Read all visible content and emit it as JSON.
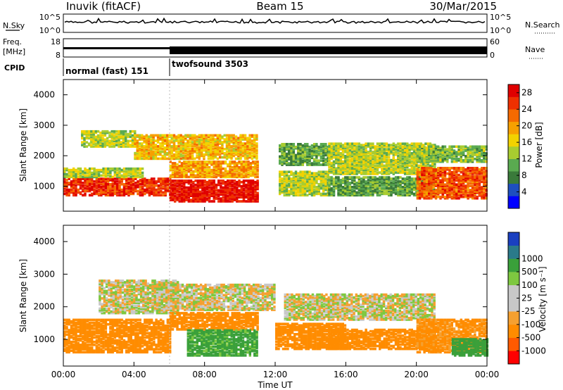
{
  "header": {
    "station": "Inuvik (fitACF)",
    "beam": "Beam 15",
    "date": "30/Mar/2015"
  },
  "panels": {
    "nsky": {
      "left_label": "N.Sky",
      "right_label": "N.Search",
      "left_ticks": [
        "10^5",
        "10^0"
      ],
      "right_ticks": [
        "10^5",
        "10^0"
      ]
    },
    "freq": {
      "left_label_1": "Freq.",
      "left_label_2": "[MHz]",
      "right_label": "Nave",
      "left_ticks": [
        "18",
        "8"
      ],
      "right_ticks": [
        "60",
        "0"
      ]
    },
    "cpid": {
      "label": "CPID",
      "segments": [
        {
          "text": "normal (fast) 151",
          "start_hour": 0,
          "end_hour": 6
        },
        {
          "text": "twofsound 3503",
          "start_hour": 6,
          "end_hour": 24
        }
      ]
    }
  },
  "colors": {
    "power_scale": [
      "#0000ff",
      "#1e4fbf",
      "#3a7a3a",
      "#5aaa50",
      "#a8cc30",
      "#f2d200",
      "#f7a000",
      "#f56a00",
      "#ee3000",
      "#e00000"
    ],
    "velocity_scale": [
      "#ff0000",
      "#ff5a00",
      "#ff8c00",
      "#f5a030",
      "#c8c8c8",
      "#c8c8c8",
      "#7ec840",
      "#3aa03a",
      "#2a7a8a",
      "#1a40c0"
    ]
  },
  "chart_data": [
    {
      "type": "heatmap",
      "title": "",
      "xlabel": "",
      "ylabel": "Slant Range [km]",
      "xlim_hours": [
        0,
        24
      ],
      "ylim": [
        180,
        4500
      ],
      "x_ticks": [
        "00:00",
        "04:00",
        "08:00",
        "12:00",
        "16:00",
        "20:00",
        "00:00"
      ],
      "y_ticks": [
        1000,
        2000,
        3000,
        4000
      ],
      "colorbar": {
        "label": "Power [dB]",
        "ticks": [
          4,
          8,
          12,
          16,
          20,
          24,
          28
        ],
        "range": [
          0,
          30
        ]
      },
      "bands": [
        {
          "hour_start": 0.0,
          "hour_end": 6.0,
          "range_start": 700,
          "range_end": 1250,
          "power": 26
        },
        {
          "hour_start": 0.0,
          "hour_end": 4.5,
          "range_start": 1300,
          "range_end": 1600,
          "power": 14
        },
        {
          "hour_start": 1.0,
          "hour_end": 4.0,
          "range_start": 2300,
          "range_end": 2800,
          "power": 14
        },
        {
          "hour_start": 4.0,
          "hour_end": 11.0,
          "range_start": 1900,
          "range_end": 2700,
          "power": 18
        },
        {
          "hour_start": 6.0,
          "hour_end": 11.0,
          "range_start": 500,
          "range_end": 1200,
          "power": 28
        },
        {
          "hour_start": 6.0,
          "hour_end": 11.0,
          "range_start": 1300,
          "range_end": 1800,
          "power": 20
        },
        {
          "hour_start": 12.2,
          "hour_end": 15.0,
          "range_start": 700,
          "range_end": 1500,
          "power": 14
        },
        {
          "hour_start": 12.2,
          "hour_end": 15.0,
          "range_start": 1700,
          "range_end": 2400,
          "power": 10
        },
        {
          "hour_start": 15.0,
          "hour_end": 21.0,
          "range_start": 1400,
          "range_end": 2400,
          "power": 14
        },
        {
          "hour_start": 15.0,
          "hour_end": 21.0,
          "range_start": 700,
          "range_end": 1300,
          "power": 10
        },
        {
          "hour_start": 20.0,
          "hour_end": 24.0,
          "range_start": 600,
          "range_end": 1600,
          "power": 24
        },
        {
          "hour_start": 20.0,
          "hour_end": 24.0,
          "range_start": 1800,
          "range_end": 2300,
          "power": 12
        }
      ]
    },
    {
      "type": "heatmap",
      "title": "",
      "xlabel": "Time UT",
      "ylabel": "Slant Range [km]",
      "xlim_hours": [
        0,
        24
      ],
      "ylim": [
        180,
        4500
      ],
      "x_ticks": [
        "00:00",
        "04:00",
        "08:00",
        "12:00",
        "16:00",
        "20:00",
        "00:00"
      ],
      "y_ticks": [
        1000,
        2000,
        3000,
        4000
      ],
      "colorbar": {
        "label": "Velocity [m s⁻¹]",
        "ticks": [
          "-1000",
          "-500",
          "-100",
          "-25",
          "25",
          "100",
          "500",
          "1000"
        ]
      },
      "bands": [
        {
          "hour_start": 0.0,
          "hour_end": 6.0,
          "range_start": 600,
          "range_end": 1600,
          "velocity": -200
        },
        {
          "hour_start": 2.0,
          "hour_end": 6.5,
          "range_start": 1800,
          "range_end": 2800,
          "velocity": 0
        },
        {
          "hour_start": 6.0,
          "hour_end": 11.0,
          "range_start": 1300,
          "range_end": 1800,
          "velocity": -200
        },
        {
          "hour_start": 7.0,
          "hour_end": 11.0,
          "range_start": 500,
          "range_end": 1300,
          "velocity": 150
        },
        {
          "hour_start": 5.0,
          "hour_end": 12.0,
          "range_start": 1900,
          "range_end": 2700,
          "velocity": 0
        },
        {
          "hour_start": 12.0,
          "hour_end": 16.0,
          "range_start": 700,
          "range_end": 1500,
          "velocity": -200
        },
        {
          "hour_start": 12.5,
          "hour_end": 21.0,
          "range_start": 1600,
          "range_end": 2400,
          "velocity": 0
        },
        {
          "hour_start": 15.0,
          "hour_end": 21.0,
          "range_start": 700,
          "range_end": 1300,
          "velocity": -300
        },
        {
          "hour_start": 20.0,
          "hour_end": 24.0,
          "range_start": 600,
          "range_end": 1600,
          "velocity": -150
        },
        {
          "hour_start": 22.0,
          "hour_end": 24.0,
          "range_start": 500,
          "range_end": 1000,
          "velocity": 200
        }
      ]
    }
  ]
}
